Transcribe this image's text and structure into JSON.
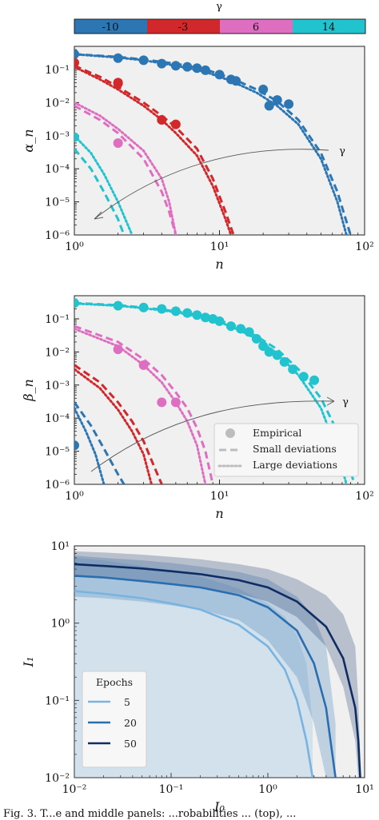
{
  "colors": {
    "g_m10": "#2c76b4",
    "g_m3": "#d1282c",
    "g_6": "#de6fc0",
    "g_14": "#21c3cf",
    "ep5": "#79b3df",
    "ep20": "#2a6eaf",
    "ep50": "#102d63",
    "panel_bg": "#f0f0f0"
  },
  "caption": "Fig. 3. T...e and middle panels: ...robabilities ... (top), ...",
  "chart_data": [
    {
      "type": "scatter",
      "id": "alpha",
      "colorbar": {
        "label": "γ",
        "ticks": [
          "-10",
          "-3",
          "6",
          "14"
        ]
      },
      "xlabel": "n",
      "ylabel": "α_n",
      "xscale": "log",
      "yscale": "log",
      "xlim": [
        1,
        100
      ],
      "ylim": [
        1e-06,
        0.5
      ],
      "xticks": [
        "10⁰",
        "10¹",
        "10²"
      ],
      "yticks": [
        "10⁻⁶",
        "10⁻⁵",
        "10⁻⁴",
        "10⁻³",
        "10⁻²",
        "10⁻¹"
      ],
      "arrow_label": "γ",
      "series": [
        {
          "gamma": "-10",
          "color_key": "g_m10",
          "empirical": [
            [
              1,
              0.29
            ],
            [
              2,
              0.22
            ],
            [
              3,
              0.19
            ],
            [
              4,
              0.15
            ],
            [
              5,
              0.13
            ],
            [
              6,
              0.12
            ],
            [
              7,
              0.11
            ],
            [
              8,
              0.095
            ],
            [
              10,
              0.07
            ],
            [
              12,
              0.05
            ],
            [
              13,
              0.045
            ],
            [
              20,
              0.025
            ],
            [
              22,
              0.008
            ],
            [
              25,
              0.012
            ],
            [
              30,
              0.009
            ]
          ],
          "small": [
            [
              1,
              0.29
            ],
            [
              2,
              0.24
            ],
            [
              3,
              0.2
            ],
            [
              5,
              0.15
            ],
            [
              8,
              0.1
            ],
            [
              12,
              0.055
            ],
            [
              18,
              0.025
            ],
            [
              25,
              0.011
            ],
            [
              35,
              0.003
            ],
            [
              50,
              0.0003
            ],
            [
              65,
              2e-05
            ],
            [
              80,
              1e-06
            ]
          ],
          "large": [
            [
              1,
              0.29
            ],
            [
              2,
              0.23
            ],
            [
              3,
              0.19
            ],
            [
              5,
              0.13
            ],
            [
              8,
              0.085
            ],
            [
              12,
              0.045
            ],
            [
              18,
              0.02
            ],
            [
              25,
              0.008
            ],
            [
              35,
              0.0022
            ],
            [
              50,
              0.0002
            ],
            [
              65,
              1e-05
            ],
            [
              75,
              1e-06
            ]
          ]
        },
        {
          "gamma": "-3",
          "color_key": "g_m3",
          "empirical": [
            [
              1,
              0.16
            ],
            [
              2,
              0.04
            ],
            [
              2,
              0.038
            ],
            [
              4,
              0.003
            ],
            [
              5,
              0.0022
            ]
          ],
          "small": [
            [
              1,
              0.13
            ],
            [
              1.5,
              0.06
            ],
            [
              2,
              0.03
            ],
            [
              3,
              0.01
            ],
            [
              4,
              0.004
            ],
            [
              5,
              0.0018
            ],
            [
              7,
              0.0004
            ],
            [
              9,
              5e-05
            ],
            [
              11,
              5e-06
            ],
            [
              12.5,
              1e-06
            ]
          ],
          "large": [
            [
              1,
              0.12
            ],
            [
              1.5,
              0.05
            ],
            [
              2,
              0.025
            ],
            [
              3,
              0.008
            ],
            [
              4,
              0.003
            ],
            [
              5,
              0.0012
            ],
            [
              7,
              0.00025
            ],
            [
              9,
              3e-05
            ],
            [
              11,
              3e-06
            ],
            [
              12,
              1e-06
            ]
          ]
        },
        {
          "gamma": "6",
          "color_key": "g_6",
          "empirical": [
            [
              2,
              0.0006
            ]
          ],
          "small": [
            [
              1,
              0.008
            ],
            [
              1.5,
              0.003
            ],
            [
              2,
              0.0012
            ],
            [
              3,
              0.0002
            ],
            [
              4,
              2e-05
            ],
            [
              4.5,
              5e-06
            ],
            [
              5,
              1e-06
            ]
          ],
          "large": [
            [
              1,
              0.01
            ],
            [
              1.5,
              0.004
            ],
            [
              2,
              0.0016
            ],
            [
              3,
              0.00035
            ],
            [
              4,
              5e-05
            ],
            [
              4.5,
              1e-05
            ],
            [
              5,
              1e-06
            ]
          ]
        },
        {
          "gamma": "14",
          "color_key": "g_14",
          "empirical": [
            [
              1,
              0.0009
            ]
          ],
          "small": [
            [
              1,
              0.0004
            ],
            [
              1.3,
              0.0001
            ],
            [
              1.6,
              2e-05
            ],
            [
              2,
              3e-06
            ],
            [
              2.2,
              1e-06
            ]
          ],
          "large": [
            [
              1,
              0.001
            ],
            [
              1.3,
              0.0003
            ],
            [
              1.6,
              7e-05
            ],
            [
              2,
              1e-05
            ],
            [
              2.5,
              1e-06
            ]
          ]
        }
      ]
    },
    {
      "type": "scatter",
      "id": "beta",
      "xlabel": "n",
      "ylabel": "β_n",
      "xscale": "log",
      "yscale": "log",
      "xlim": [
        1,
        100
      ],
      "ylim": [
        1e-06,
        0.5
      ],
      "xticks": [
        "10⁰",
        "10¹",
        "10²"
      ],
      "yticks": [
        "10⁻⁶",
        "10⁻⁵",
        "10⁻⁴",
        "10⁻³",
        "10⁻²",
        "10⁻¹"
      ],
      "arrow_label": "γ",
      "legend": {
        "placement": "lower-right",
        "entries": [
          "Empirical",
          "Small deviations",
          "Large deviations"
        ]
      },
      "series": [
        {
          "gamma": "14",
          "color_key": "g_14",
          "empirical": [
            [
              1,
              0.3
            ],
            [
              2,
              0.25
            ],
            [
              3,
              0.22
            ],
            [
              4,
              0.2
            ],
            [
              5,
              0.17
            ],
            [
              6,
              0.15
            ],
            [
              7,
              0.13
            ],
            [
              8,
              0.11
            ],
            [
              9,
              0.1
            ],
            [
              10,
              0.085
            ],
            [
              12,
              0.06
            ],
            [
              14,
              0.05
            ],
            [
              16,
              0.04
            ],
            [
              18,
              0.025
            ],
            [
              20,
              0.015
            ],
            [
              22,
              0.01
            ],
            [
              25,
              0.008
            ],
            [
              28,
              0.005
            ],
            [
              32,
              0.003
            ],
            [
              38,
              0.0018
            ],
            [
              45,
              0.0014
            ]
          ],
          "small": [
            [
              1,
              0.3
            ],
            [
              2,
              0.26
            ],
            [
              3,
              0.22
            ],
            [
              5,
              0.17
            ],
            [
              8,
              0.12
            ],
            [
              12,
              0.07
            ],
            [
              18,
              0.03
            ],
            [
              25,
              0.012
            ],
            [
              35,
              0.003
            ],
            [
              50,
              0.0004
            ],
            [
              70,
              2e-05
            ],
            [
              85,
              1e-06
            ]
          ],
          "large": [
            [
              1,
              0.29
            ],
            [
              2,
              0.25
            ],
            [
              3,
              0.21
            ],
            [
              5,
              0.16
            ],
            [
              8,
              0.105
            ],
            [
              12,
              0.06
            ],
            [
              18,
              0.025
            ],
            [
              25,
              0.009
            ],
            [
              35,
              0.002
            ],
            [
              50,
              0.0002
            ],
            [
              65,
              1e-05
            ],
            [
              75,
              1e-06
            ]
          ]
        },
        {
          "gamma": "6",
          "color_key": "g_6",
          "empirical": [
            [
              2,
              0.012
            ],
            [
              3,
              0.004
            ],
            [
              4,
              0.0003
            ],
            [
              5,
              0.0003
            ]
          ],
          "small": [
            [
              1,
              0.06
            ],
            [
              2,
              0.02
            ],
            [
              3,
              0.006
            ],
            [
              4,
              0.002
            ],
            [
              5,
              0.0006
            ],
            [
              6,
              0.0002
            ],
            [
              7,
              5e-05
            ],
            [
              8,
              1e-05
            ],
            [
              9,
              1e-06
            ]
          ],
          "large": [
            [
              1,
              0.05
            ],
            [
              2,
              0.015
            ],
            [
              3,
              0.004
            ],
            [
              4,
              0.0012
            ],
            [
              5,
              0.0003
            ],
            [
              6,
              8e-05
            ],
            [
              7,
              1.5e-05
            ],
            [
              8,
              1e-06
            ]
          ]
        },
        {
          "gamma": "-3",
          "color_key": "g_m3",
          "empirical": [],
          "small": [
            [
              1,
              0.004
            ],
            [
              1.5,
              0.0012
            ],
            [
              2,
              0.0003
            ],
            [
              2.5,
              8e-05
            ],
            [
              3,
              2e-05
            ],
            [
              3.5,
              4e-06
            ],
            [
              4,
              1e-06
            ]
          ],
          "large": [
            [
              1,
              0.003
            ],
            [
              1.5,
              0.0008
            ],
            [
              2,
              0.00018
            ],
            [
              2.5,
              4e-05
            ],
            [
              3,
              8e-06
            ],
            [
              3.4,
              1e-06
            ]
          ]
        },
        {
          "gamma": "-10",
          "color_key": "g_m10",
          "empirical": [
            [
              1,
              1.5e-05
            ]
          ],
          "small": [
            [
              1,
              0.0003
            ],
            [
              1.3,
              6e-05
            ],
            [
              1.6,
              1.2e-05
            ],
            [
              2,
              2e-06
            ],
            [
              2.2,
              1e-06
            ]
          ],
          "large": [
            [
              1,
              0.0002
            ],
            [
              1.2,
              4e-05
            ],
            [
              1.4,
              8e-06
            ],
            [
              1.6,
              1e-06
            ]
          ]
        }
      ]
    },
    {
      "type": "line",
      "id": "I1",
      "xlabel": "I₀",
      "ylabel": "I₁",
      "xscale": "log",
      "yscale": "log",
      "xlim": [
        0.01,
        10
      ],
      "ylim": [
        0.01,
        10
      ],
      "xticks": [
        "10⁻²",
        "10⁻¹",
        "10⁰",
        "10¹"
      ],
      "yticks": [
        "10⁻²",
        "10⁻¹",
        "10⁰",
        "10¹"
      ],
      "legend": {
        "title": "Epochs",
        "placement": "lower-left",
        "entries": [
          "5",
          "20",
          "50"
        ]
      },
      "series": [
        {
          "name": "5",
          "color_key": "ep5",
          "x": [
            0.01,
            0.02,
            0.05,
            0.1,
            0.2,
            0.5,
            1,
            1.5,
            2,
            2.5,
            2.9
          ],
          "y": [
            2.6,
            2.4,
            2.1,
            1.8,
            1.5,
            0.95,
            0.5,
            0.25,
            0.1,
            0.03,
            0.01
          ],
          "band_lo": [
            0.01,
            0.01,
            0.01,
            0.01,
            0.01,
            0.01,
            0.01,
            0.01,
            0.01,
            0.01,
            0.01
          ],
          "band_hi": [
            7,
            6.5,
            5.5,
            4.8,
            4,
            2.8,
            1.8,
            1.2,
            0.7,
            0.3,
            0.05
          ]
        },
        {
          "name": "20",
          "color_key": "ep20",
          "x": [
            0.01,
            0.02,
            0.05,
            0.1,
            0.2,
            0.5,
            1,
            2,
            3,
            4,
            5
          ],
          "y": [
            4.1,
            3.9,
            3.5,
            3.2,
            2.9,
            2.3,
            1.6,
            0.8,
            0.3,
            0.08,
            0.01
          ],
          "band_lo": [
            2.2,
            2.1,
            1.9,
            1.7,
            1.5,
            1.1,
            0.6,
            0.2,
            0.05,
            0.01,
            0.01
          ],
          "band_hi": [
            7.5,
            7,
            6.5,
            6,
            5.4,
            4.6,
            3.7,
            2.2,
            1.2,
            0.5,
            0.05
          ]
        },
        {
          "name": "50",
          "color_key": "ep50",
          "x": [
            0.01,
            0.02,
            0.05,
            0.1,
            0.2,
            0.5,
            1,
            2,
            4,
            6,
            8,
            8.6,
            9
          ],
          "y": [
            5.8,
            5.5,
            5.1,
            4.7,
            4.3,
            3.6,
            2.9,
            1.9,
            0.9,
            0.35,
            0.08,
            0.03,
            0.01
          ],
          "band_lo": [
            4,
            3.8,
            3.5,
            3.2,
            2.9,
            2.4,
            1.9,
            1.2,
            0.5,
            0.15,
            0.03,
            0.01,
            0.01
          ],
          "band_hi": [
            8.5,
            8.2,
            7.7,
            7.2,
            6.7,
            5.8,
            5,
            3.7,
            2.3,
            1.3,
            0.5,
            0.1,
            0.02
          ]
        }
      ]
    }
  ]
}
